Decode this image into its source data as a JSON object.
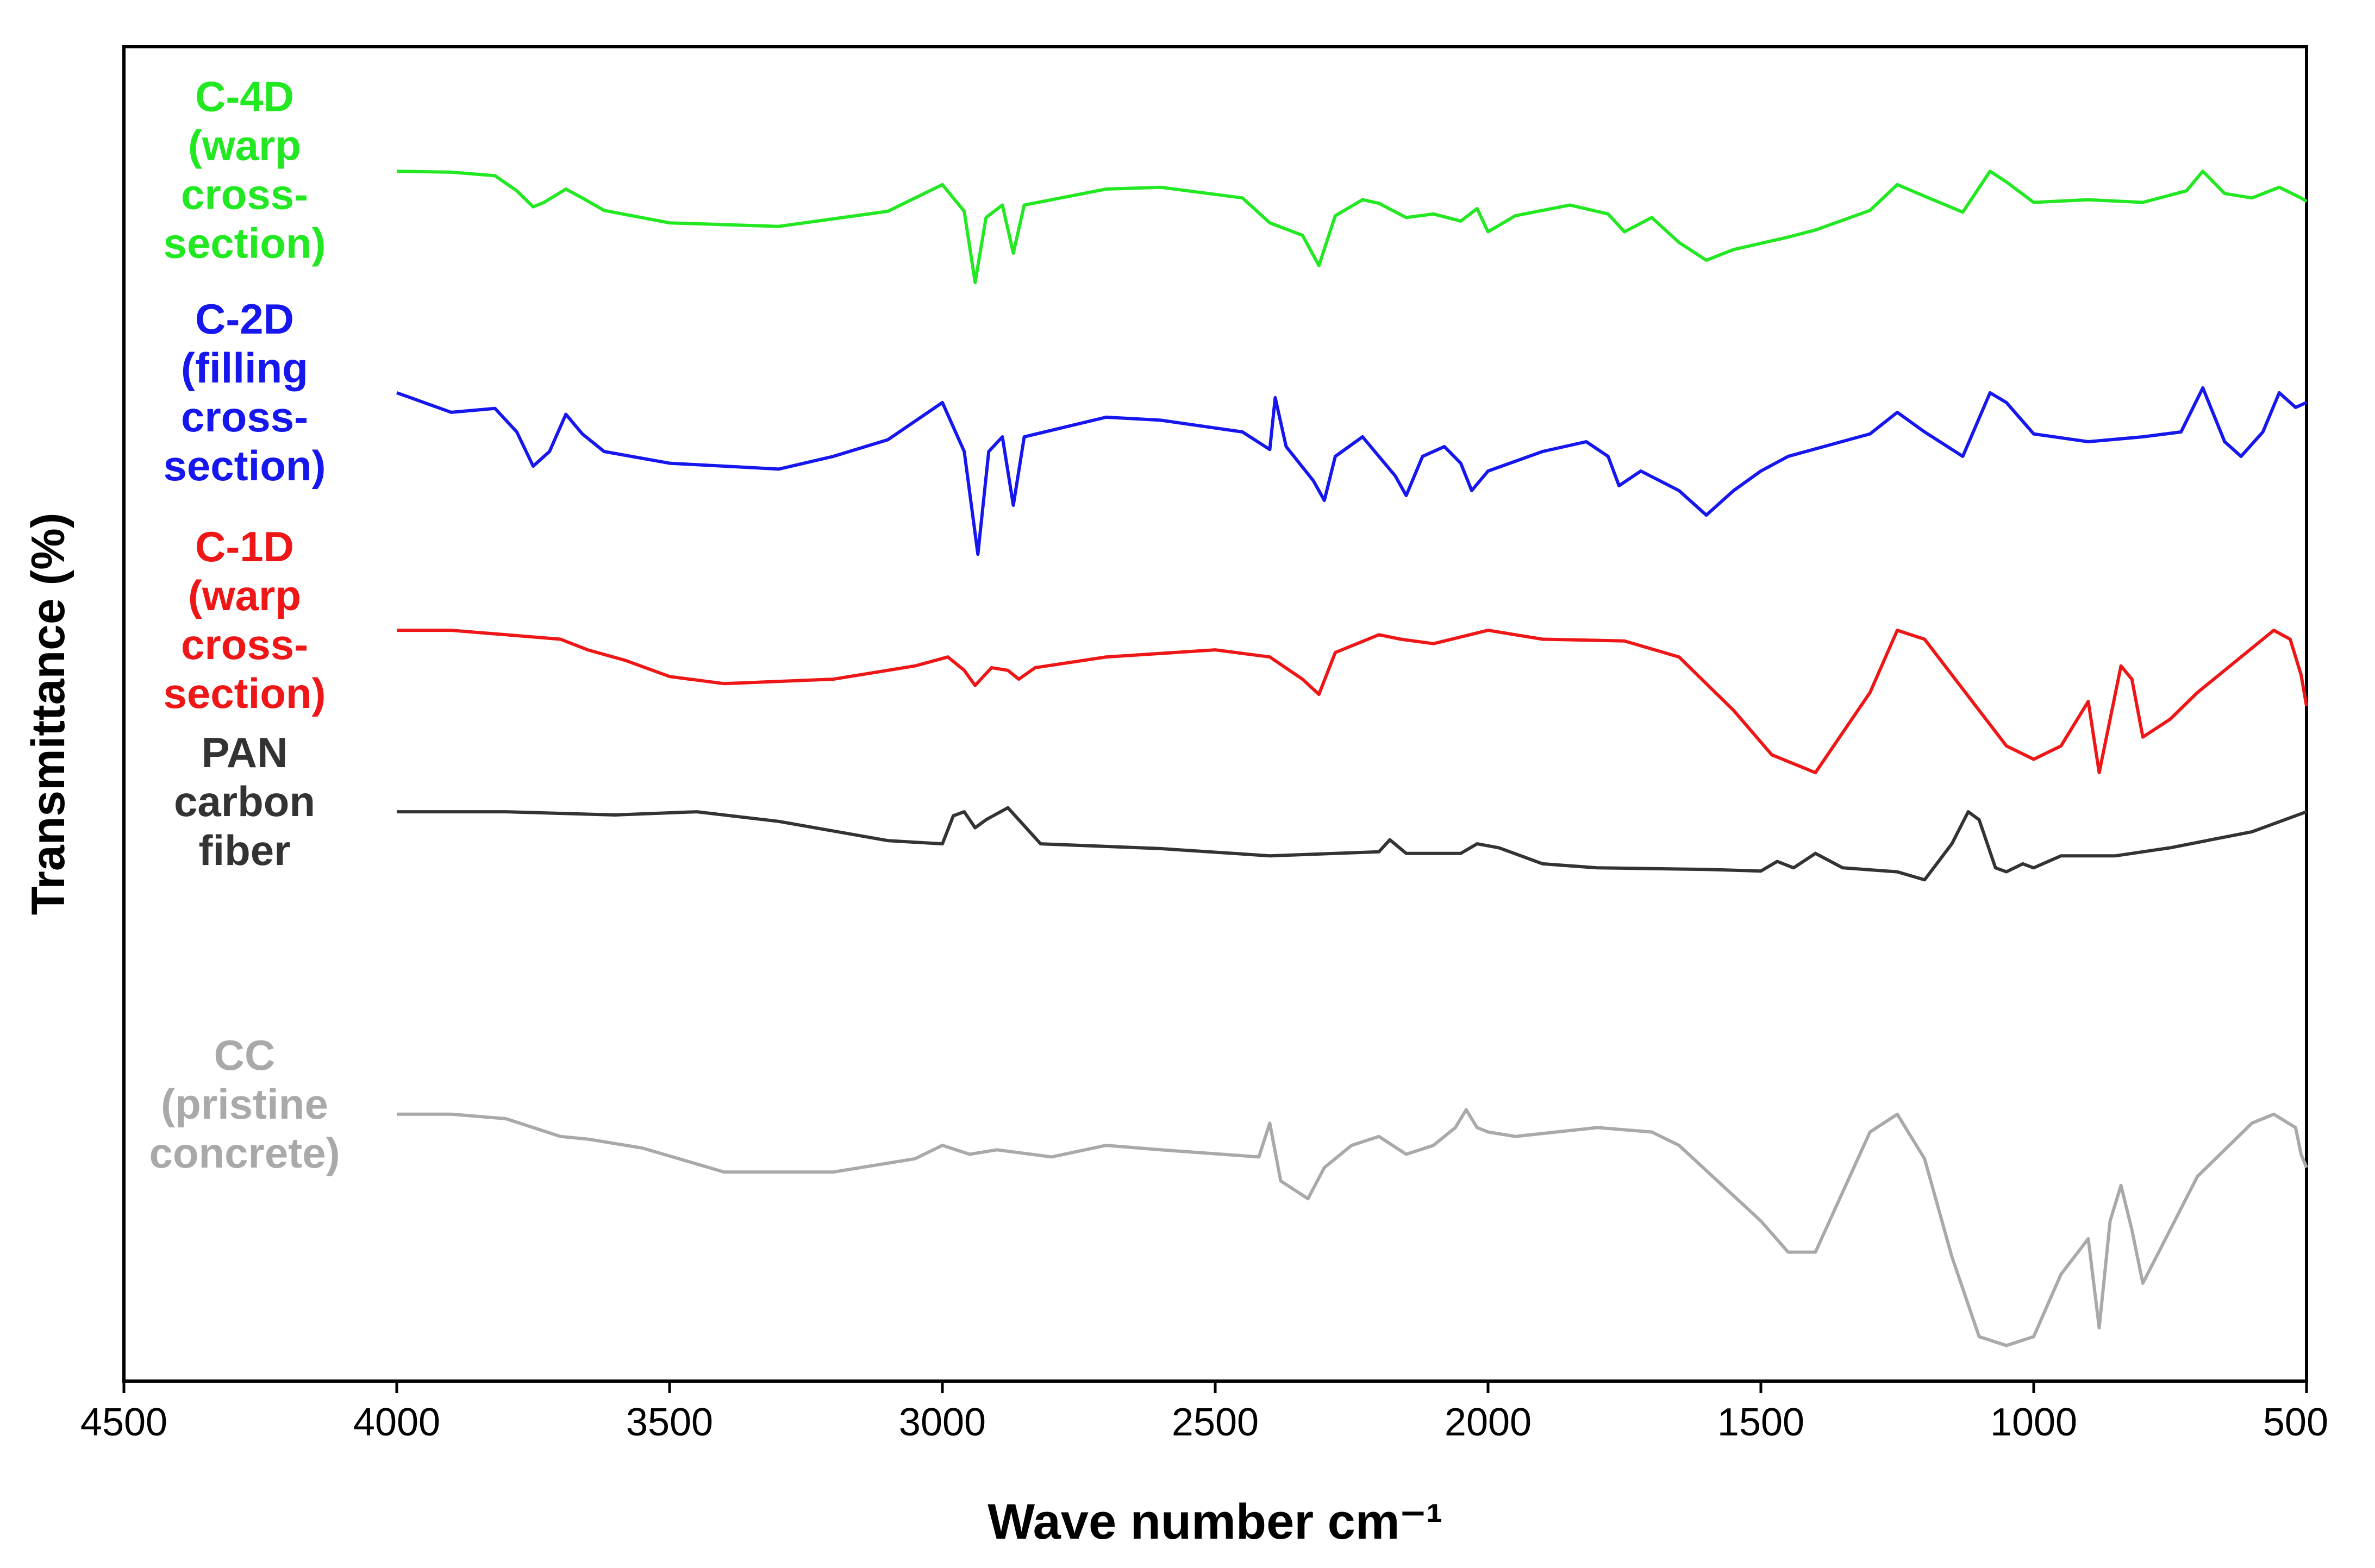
{
  "chart_data": {
    "type": "line",
    "xlabel": "Wave number cm⁻¹",
    "ylabel": "Transmittance (%)",
    "xlim": [
      4500,
      500
    ],
    "x_reversed": true,
    "y_ticks_shown": false,
    "grid": false,
    "x_ticks": [
      4500,
      4000,
      3500,
      3000,
      2500,
      2000,
      1500,
      1000,
      500
    ],
    "series": [
      {
        "name": "C-4D (warp cross-section)",
        "label_lines": [
          "C-4D",
          "(warp",
          "cross-",
          "section)"
        ],
        "color": "#22e822",
        "offset": 3.55,
        "scale": 0.5,
        "points": [
          [
            4000,
            0.1
          ],
          [
            3900,
            0.09
          ],
          [
            3820,
            0.05
          ],
          [
            3780,
            -0.12
          ],
          [
            3750,
            -0.3
          ],
          [
            3730,
            -0.25
          ],
          [
            3690,
            -0.1
          ],
          [
            3660,
            -0.2
          ],
          [
            3620,
            -0.34
          ],
          [
            3500,
            -0.48
          ],
          [
            3300,
            -0.52
          ],
          [
            3100,
            -0.35
          ],
          [
            3000,
            -0.05
          ],
          [
            2960,
            -0.35
          ],
          [
            2940,
            -1.15
          ],
          [
            2920,
            -0.42
          ],
          [
            2890,
            -0.28
          ],
          [
            2870,
            -0.82
          ],
          [
            2850,
            -0.28
          ],
          [
            2700,
            -0.1
          ],
          [
            2600,
            -0.08
          ],
          [
            2450,
            -0.2
          ],
          [
            2400,
            -0.48
          ],
          [
            2340,
            -0.62
          ],
          [
            2310,
            -0.96
          ],
          [
            2280,
            -0.4
          ],
          [
            2230,
            -0.22
          ],
          [
            2200,
            -0.26
          ],
          [
            2150,
            -0.42
          ],
          [
            2100,
            -0.38
          ],
          [
            2050,
            -0.46
          ],
          [
            2020,
            -0.32
          ],
          [
            2000,
            -0.58
          ],
          [
            1950,
            -0.4
          ],
          [
            1850,
            -0.28
          ],
          [
            1780,
            -0.38
          ],
          [
            1750,
            -0.58
          ],
          [
            1700,
            -0.42
          ],
          [
            1650,
            -0.7
          ],
          [
            1600,
            -0.9
          ],
          [
            1550,
            -0.78
          ],
          [
            1450,
            -0.64
          ],
          [
            1400,
            -0.56
          ],
          [
            1300,
            -0.34
          ],
          [
            1250,
            -0.05
          ],
          [
            1200,
            -0.18
          ],
          [
            1130,
            -0.36
          ],
          [
            1080,
            0.1
          ],
          [
            1050,
            -0.02
          ],
          [
            1000,
            -0.25
          ],
          [
            900,
            -0.22
          ],
          [
            800,
            -0.25
          ],
          [
            720,
            -0.12
          ],
          [
            690,
            0.1
          ],
          [
            650,
            -0.15
          ],
          [
            600,
            -0.2
          ],
          [
            550,
            -0.08
          ],
          [
            510,
            -0.2
          ],
          [
            500,
            -0.24
          ]
        ]
      },
      {
        "name": "C-2D (filling cross-section)",
        "label_lines": [
          "C-2D",
          "(filling",
          "cross-",
          "section)"
        ],
        "color": "#1616ee",
        "offset": 2.3,
        "scale": 0.55,
        "points": [
          [
            4000,
            0.1
          ],
          [
            3950,
            0.0
          ],
          [
            3900,
            -0.1
          ],
          [
            3820,
            -0.06
          ],
          [
            3780,
            -0.3
          ],
          [
            3750,
            -0.65
          ],
          [
            3720,
            -0.5
          ],
          [
            3690,
            -0.12
          ],
          [
            3660,
            -0.32
          ],
          [
            3620,
            -0.5
          ],
          [
            3500,
            -0.62
          ],
          [
            3300,
            -0.68
          ],
          [
            3200,
            -0.55
          ],
          [
            3100,
            -0.38
          ],
          [
            3000,
            0.0
          ],
          [
            2960,
            -0.5
          ],
          [
            2935,
            -1.55
          ],
          [
            2915,
            -0.5
          ],
          [
            2890,
            -0.35
          ],
          [
            2870,
            -1.05
          ],
          [
            2850,
            -0.35
          ],
          [
            2700,
            -0.15
          ],
          [
            2600,
            -0.18
          ],
          [
            2450,
            -0.3
          ],
          [
            2400,
            -0.48
          ],
          [
            2390,
            0.05
          ],
          [
            2370,
            -0.45
          ],
          [
            2320,
            -0.8
          ],
          [
            2300,
            -1.0
          ],
          [
            2280,
            -0.55
          ],
          [
            2230,
            -0.35
          ],
          [
            2200,
            -0.55
          ],
          [
            2170,
            -0.75
          ],
          [
            2150,
            -0.95
          ],
          [
            2120,
            -0.55
          ],
          [
            2080,
            -0.45
          ],
          [
            2050,
            -0.62
          ],
          [
            2030,
            -0.9
          ],
          [
            2000,
            -0.7
          ],
          [
            1900,
            -0.5
          ],
          [
            1820,
            -0.4
          ],
          [
            1780,
            -0.55
          ],
          [
            1760,
            -0.85
          ],
          [
            1720,
            -0.7
          ],
          [
            1650,
            -0.9
          ],
          [
            1600,
            -1.15
          ],
          [
            1550,
            -0.9
          ],
          [
            1500,
            -0.7
          ],
          [
            1450,
            -0.55
          ],
          [
            1300,
            -0.32
          ],
          [
            1250,
            -0.1
          ],
          [
            1200,
            -0.3
          ],
          [
            1130,
            -0.55
          ],
          [
            1080,
            0.1
          ],
          [
            1050,
            0.0
          ],
          [
            1000,
            -0.32
          ],
          [
            900,
            -0.4
          ],
          [
            800,
            -0.35
          ],
          [
            730,
            -0.3
          ],
          [
            690,
            0.15
          ],
          [
            650,
            -0.4
          ],
          [
            620,
            -0.55
          ],
          [
            580,
            -0.3
          ],
          [
            550,
            0.1
          ],
          [
            520,
            -0.05
          ],
          [
            500,
            0.0
          ]
        ]
      },
      {
        "name": "C-1D (warp cross-section)",
        "label_lines": [
          "C-1D",
          "(warp",
          "cross-",
          "section)"
        ],
        "color": "#ee1616",
        "offset": 1.02,
        "scale": 0.5,
        "points": [
          [
            4000,
            0.0
          ],
          [
            3900,
            0.0
          ],
          [
            3800,
            -0.05
          ],
          [
            3700,
            -0.1
          ],
          [
            3650,
            -0.22
          ],
          [
            3580,
            -0.34
          ],
          [
            3500,
            -0.52
          ],
          [
            3400,
            -0.6
          ],
          [
            3200,
            -0.55
          ],
          [
            3050,
            -0.4
          ],
          [
            2990,
            -0.3
          ],
          [
            2960,
            -0.45
          ],
          [
            2940,
            -0.62
          ],
          [
            2910,
            -0.42
          ],
          [
            2880,
            -0.45
          ],
          [
            2860,
            -0.55
          ],
          [
            2830,
            -0.42
          ],
          [
            2700,
            -0.3
          ],
          [
            2500,
            -0.22
          ],
          [
            2400,
            -0.3
          ],
          [
            2340,
            -0.55
          ],
          [
            2310,
            -0.72
          ],
          [
            2280,
            -0.25
          ],
          [
            2200,
            -0.05
          ],
          [
            2160,
            -0.1
          ],
          [
            2100,
            -0.15
          ],
          [
            2000,
            0.0
          ],
          [
            1900,
            -0.1
          ],
          [
            1750,
            -0.12
          ],
          [
            1650,
            -0.3
          ],
          [
            1550,
            -0.9
          ],
          [
            1480,
            -1.4
          ],
          [
            1400,
            -1.6
          ],
          [
            1300,
            -0.7
          ],
          [
            1250,
            0.0
          ],
          [
            1200,
            -0.1
          ],
          [
            1100,
            -0.9
          ],
          [
            1050,
            -1.3
          ],
          [
            1000,
            -1.45
          ],
          [
            950,
            -1.3
          ],
          [
            900,
            -0.8
          ],
          [
            880,
            -1.6
          ],
          [
            860,
            -1.0
          ],
          [
            840,
            -0.4
          ],
          [
            820,
            -0.55
          ],
          [
            800,
            -1.2
          ],
          [
            750,
            -1.0
          ],
          [
            700,
            -0.7
          ],
          [
            600,
            -0.2
          ],
          [
            560,
            0.0
          ],
          [
            530,
            -0.1
          ],
          [
            510,
            -0.5
          ],
          [
            500,
            -0.85
          ]
        ]
      },
      {
        "name": "PAN carbon fiber",
        "label_lines": [
          "PAN",
          "carbon",
          "fiber"
        ],
        "color": "#333333",
        "offset": 0.0,
        "scale": 0.45,
        "points": [
          [
            4000,
            0.0
          ],
          [
            3800,
            0.0
          ],
          [
            3600,
            -0.04
          ],
          [
            3450,
            0.0
          ],
          [
            3300,
            -0.12
          ],
          [
            3100,
            -0.36
          ],
          [
            3000,
            -0.4
          ],
          [
            2980,
            -0.05
          ],
          [
            2960,
            0.0
          ],
          [
            2940,
            -0.2
          ],
          [
            2920,
            -0.1
          ],
          [
            2880,
            0.05
          ],
          [
            2860,
            -0.1
          ],
          [
            2820,
            -0.4
          ],
          [
            2600,
            -0.46
          ],
          [
            2400,
            -0.55
          ],
          [
            2200,
            -0.5
          ],
          [
            2180,
            -0.35
          ],
          [
            2150,
            -0.52
          ],
          [
            2050,
            -0.52
          ],
          [
            2020,
            -0.4
          ],
          [
            1980,
            -0.45
          ],
          [
            1900,
            -0.65
          ],
          [
            1800,
            -0.7
          ],
          [
            1600,
            -0.72
          ],
          [
            1500,
            -0.74
          ],
          [
            1470,
            -0.62
          ],
          [
            1440,
            -0.7
          ],
          [
            1400,
            -0.52
          ],
          [
            1350,
            -0.7
          ],
          [
            1250,
            -0.75
          ],
          [
            1200,
            -0.85
          ],
          [
            1150,
            -0.4
          ],
          [
            1120,
            0.0
          ],
          [
            1100,
            -0.1
          ],
          [
            1070,
            -0.7
          ],
          [
            1050,
            -0.75
          ],
          [
            1020,
            -0.65
          ],
          [
            1000,
            -0.7
          ],
          [
            950,
            -0.55
          ],
          [
            850,
            -0.55
          ],
          [
            750,
            -0.45
          ],
          [
            600,
            -0.25
          ],
          [
            500,
            0.0
          ]
        ]
      },
      {
        "name": "CC (pristine concrete)",
        "label_lines": [
          "CC",
          "(pristine",
          "concrete)"
        ],
        "color": "#a9a9a9",
        "offset": -1.7,
        "scale": 0.5,
        "points": [
          [
            4000,
            0.0
          ],
          [
            3900,
            0.0
          ],
          [
            3800,
            -0.05
          ],
          [
            3700,
            -0.25
          ],
          [
            3650,
            -0.28
          ],
          [
            3550,
            -0.38
          ],
          [
            3400,
            -0.65
          ],
          [
            3200,
            -0.65
          ],
          [
            3050,
            -0.5
          ],
          [
            3000,
            -0.35
          ],
          [
            2950,
            -0.45
          ],
          [
            2900,
            -0.4
          ],
          [
            2800,
            -0.48
          ],
          [
            2700,
            -0.35
          ],
          [
            2600,
            -0.4
          ],
          [
            2420,
            -0.48
          ],
          [
            2400,
            -0.1
          ],
          [
            2380,
            -0.75
          ],
          [
            2330,
            -0.95
          ],
          [
            2300,
            -0.6
          ],
          [
            2250,
            -0.35
          ],
          [
            2200,
            -0.25
          ],
          [
            2150,
            -0.45
          ],
          [
            2100,
            -0.35
          ],
          [
            2060,
            -0.15
          ],
          [
            2040,
            0.05
          ],
          [
            2020,
            -0.15
          ],
          [
            2000,
            -0.2
          ],
          [
            1950,
            -0.25
          ],
          [
            1800,
            -0.15
          ],
          [
            1700,
            -0.2
          ],
          [
            1650,
            -0.35
          ],
          [
            1500,
            -1.2
          ],
          [
            1450,
            -1.55
          ],
          [
            1400,
            -1.55
          ],
          [
            1300,
            -0.2
          ],
          [
            1250,
            0.0
          ],
          [
            1200,
            -0.5
          ],
          [
            1150,
            -1.6
          ],
          [
            1100,
            -2.5
          ],
          [
            1050,
            -2.6
          ],
          [
            1000,
            -2.5
          ],
          [
            950,
            -1.8
          ],
          [
            900,
            -1.4
          ],
          [
            880,
            -2.4
          ],
          [
            860,
            -1.2
          ],
          [
            840,
            -0.8
          ],
          [
            820,
            -1.3
          ],
          [
            800,
            -1.9
          ],
          [
            700,
            -0.7
          ],
          [
            600,
            -0.1
          ],
          [
            560,
            0.0
          ],
          [
            520,
            -0.15
          ],
          [
            510,
            -0.45
          ],
          [
            500,
            -0.6
          ]
        ]
      }
    ]
  }
}
